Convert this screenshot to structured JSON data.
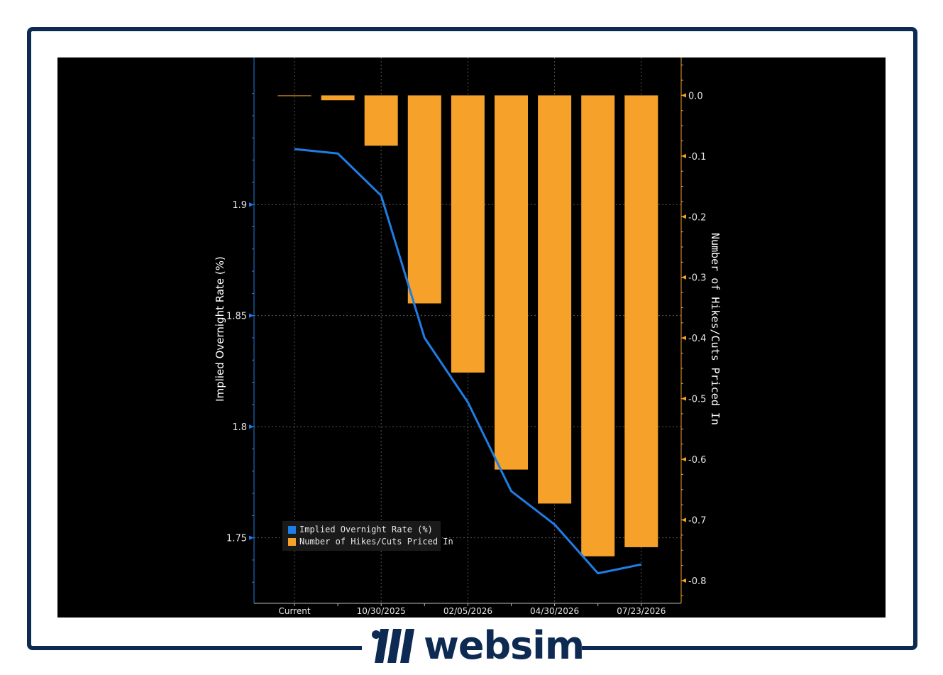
{
  "chart_data": {
    "type": "bar+line",
    "categories": [
      "Current",
      "",
      "10/30/2025",
      "",
      "02/05/2026",
      "",
      "04/30/2026",
      "",
      "07/23/2026"
    ],
    "x_tick_labels": [
      "Current",
      "10/30/2025",
      "02/05/2026",
      "04/30/2026",
      "07/23/2026"
    ],
    "series": [
      {
        "name": "Implied Overnight Rate (%)",
        "type": "line",
        "axis": "left",
        "color": "#1f7de6",
        "values": [
          1.925,
          1.923,
          1.904,
          1.84,
          1.811,
          1.771,
          1.756,
          1.734,
          1.738
        ]
      },
      {
        "name": "Number of Hikes/Cuts Priced In",
        "type": "bar",
        "axis": "right",
        "color": "#f5a12a",
        "values": [
          0.0,
          -0.008,
          -0.083,
          -0.343,
          -0.457,
          -0.617,
          -0.673,
          -0.76,
          -0.745
        ]
      }
    ],
    "ylabel_left": "Implied Overnight Rate (%)",
    "ylabel_right": "Number of Hikes/Cuts Priced In",
    "ylim_left": [
      1.7205,
      1.9662
    ],
    "ylim_right": [
      -0.8375,
      0.0625
    ],
    "yticks_left": [
      "1.75",
      "1.8",
      "1.85",
      "1.9"
    ],
    "yticks_right": [
      "0.0",
      "-0.1",
      "-0.2",
      "-0.3",
      "-0.4",
      "-0.5",
      "-0.6",
      "-0.7",
      "-0.8"
    ],
    "grid": true,
    "legend_position": "bottom-left",
    "background": "#000000"
  },
  "brand": {
    "name": "websim",
    "color": "#0d2a52"
  }
}
